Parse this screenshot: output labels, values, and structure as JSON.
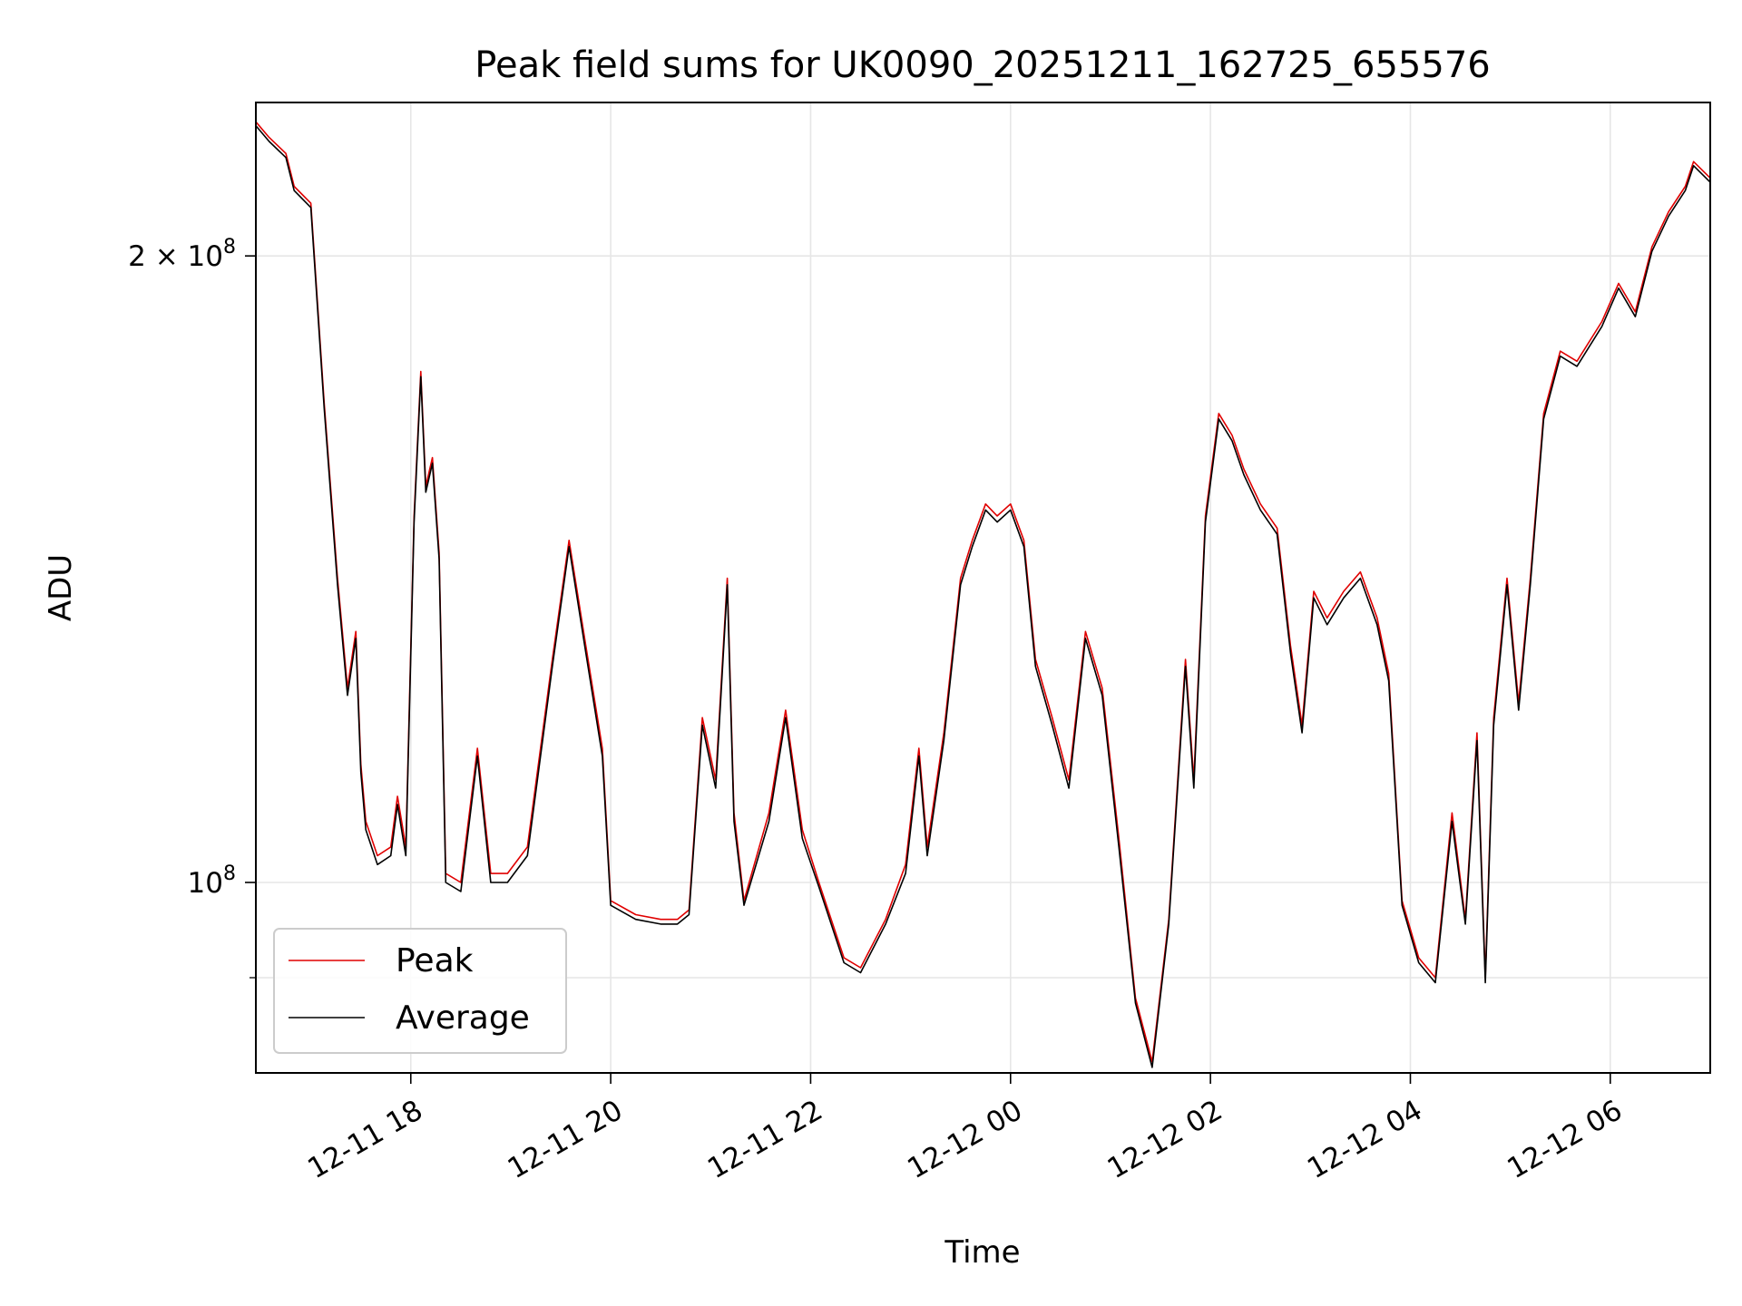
{
  "chart_data": {
    "type": "line",
    "title": "Peak field sums for UK0090_20251211_162725_655576",
    "xlabel": "Time",
    "ylabel": "ADU",
    "x_axis": {
      "type": "time",
      "range": [
        "2025-12-11T16:27",
        "2025-12-12T07:00"
      ]
    },
    "y_axis": {
      "scale": "log",
      "range": [
        81000000,
        237000000
      ]
    },
    "grid": true,
    "legend": {
      "placement": "lower-left"
    },
    "x_ticks": [
      {
        "value": "2025-12-11T18:00",
        "label": "12-11 18"
      },
      {
        "value": "2025-12-11T20:00",
        "label": "12-11 20"
      },
      {
        "value": "2025-12-11T22:00",
        "label": "12-11 22"
      },
      {
        "value": "2025-12-12T00:00",
        "label": "12-12 00"
      },
      {
        "value": "2025-12-12T02:00",
        "label": "12-12 02"
      },
      {
        "value": "2025-12-12T04:00",
        "label": "12-12 04"
      },
      {
        "value": "2025-12-12T06:00",
        "label": "12-12 06"
      }
    ],
    "y_ticks": [
      {
        "value": 200000000,
        "label_base": "2 × 10",
        "label_exp": "8"
      },
      {
        "value": 100000000,
        "label_base": "10",
        "label_exp": "8"
      }
    ],
    "y_minor_ticks": [
      90000000
    ],
    "series": [
      {
        "name": "Peak",
        "color": "#e00000",
        "points": [
          [
            "2025-12-11T16:27",
            232000000
          ],
          [
            "2025-12-11T16:35",
            228000000
          ],
          [
            "2025-12-11T16:45",
            224000000
          ],
          [
            "2025-12-11T16:50",
            216000000
          ],
          [
            "2025-12-11T17:00",
            212000000
          ],
          [
            "2025-12-11T17:08",
            170000000
          ],
          [
            "2025-12-11T17:16",
            140000000
          ],
          [
            "2025-12-11T17:22",
            124000000
          ],
          [
            "2025-12-11T17:27",
            132000000
          ],
          [
            "2025-12-11T17:30",
            114000000
          ],
          [
            "2025-12-11T17:33",
            107000000
          ],
          [
            "2025-12-11T17:40",
            103000000
          ],
          [
            "2025-12-11T17:48",
            104000000
          ],
          [
            "2025-12-11T17:52",
            110000000
          ],
          [
            "2025-12-11T17:57",
            104000000
          ],
          [
            "2025-12-11T18:02",
            150000000
          ],
          [
            "2025-12-11T18:06",
            176000000
          ],
          [
            "2025-12-11T18:09",
            155000000
          ],
          [
            "2025-12-11T18:13",
            160000000
          ],
          [
            "2025-12-11T18:17",
            144000000
          ],
          [
            "2025-12-11T18:21",
            101000000
          ],
          [
            "2025-12-11T18:30",
            100000000
          ],
          [
            "2025-12-11T18:40",
            116000000
          ],
          [
            "2025-12-11T18:48",
            101000000
          ],
          [
            "2025-12-11T18:58",
            101000000
          ],
          [
            "2025-12-11T19:10",
            104000000
          ],
          [
            "2025-12-11T19:25",
            128000000
          ],
          [
            "2025-12-11T19:35",
            146000000
          ],
          [
            "2025-12-11T19:45",
            130000000
          ],
          [
            "2025-12-11T19:55",
            116000000
          ],
          [
            "2025-12-11T20:00",
            98000000
          ],
          [
            "2025-12-11T20:15",
            96500000
          ],
          [
            "2025-12-11T20:30",
            96000000
          ],
          [
            "2025-12-11T20:40",
            96000000
          ],
          [
            "2025-12-11T20:47",
            97000000
          ],
          [
            "2025-12-11T20:55",
            120000000
          ],
          [
            "2025-12-11T21:03",
            112000000
          ],
          [
            "2025-12-11T21:10",
            140000000
          ],
          [
            "2025-12-11T21:14",
            108000000
          ],
          [
            "2025-12-11T21:20",
            98000000
          ],
          [
            "2025-12-11T21:35",
            108000000
          ],
          [
            "2025-12-11T21:45",
            121000000
          ],
          [
            "2025-12-11T21:55",
            106000000
          ],
          [
            "2025-12-11T22:05",
            100000000
          ],
          [
            "2025-12-11T22:20",
            92000000
          ],
          [
            "2025-12-11T22:30",
            91000000
          ],
          [
            "2025-12-11T22:45",
            96000000
          ],
          [
            "2025-12-11T22:57",
            102000000
          ],
          [
            "2025-12-11T23:05",
            116000000
          ],
          [
            "2025-12-11T23:10",
            104000000
          ],
          [
            "2025-12-11T23:20",
            118000000
          ],
          [
            "2025-12-11T23:30",
            140000000
          ],
          [
            "2025-12-11T23:37",
            146000000
          ],
          [
            "2025-12-11T23:45",
            152000000
          ],
          [
            "2025-12-11T23:52",
            150000000
          ],
          [
            "2025-12-12T00:00",
            152000000
          ],
          [
            "2025-12-12T00:08",
            146000000
          ],
          [
            "2025-12-12T00:15",
            128000000
          ],
          [
            "2025-12-12T00:25",
            120000000
          ],
          [
            "2025-12-12T00:35",
            112000000
          ],
          [
            "2025-12-12T00:45",
            132000000
          ],
          [
            "2025-12-12T00:55",
            124000000
          ],
          [
            "2025-12-12T01:05",
            105000000
          ],
          [
            "2025-12-12T01:15",
            88000000
          ],
          [
            "2025-12-12T01:25",
            82000000
          ],
          [
            "2025-12-12T01:35",
            96000000
          ],
          [
            "2025-12-12T01:45",
            128000000
          ],
          [
            "2025-12-12T01:50",
            112000000
          ],
          [
            "2025-12-12T01:57",
            150000000
          ],
          [
            "2025-12-12T02:05",
            168000000
          ],
          [
            "2025-12-12T02:13",
            164000000
          ],
          [
            "2025-12-12T02:20",
            158000000
          ],
          [
            "2025-12-12T02:30",
            152000000
          ],
          [
            "2025-12-12T02:40",
            148000000
          ],
          [
            "2025-12-12T02:48",
            130000000
          ],
          [
            "2025-12-12T02:55",
            119000000
          ],
          [
            "2025-12-12T03:02",
            138000000
          ],
          [
            "2025-12-12T03:10",
            134000000
          ],
          [
            "2025-12-12T03:20",
            138000000
          ],
          [
            "2025-12-12T03:30",
            141000000
          ],
          [
            "2025-12-12T03:40",
            134000000
          ],
          [
            "2025-12-12T03:47",
            126000000
          ],
          [
            "2025-12-12T03:55",
            98000000
          ],
          [
            "2025-12-12T04:05",
            92000000
          ],
          [
            "2025-12-12T04:15",
            90000000
          ],
          [
            "2025-12-12T04:25",
            108000000
          ],
          [
            "2025-12-12T04:33",
            96000000
          ],
          [
            "2025-12-12T04:40",
            118000000
          ],
          [
            "2025-12-12T04:45",
            90000000
          ],
          [
            "2025-12-12T04:50",
            120000000
          ],
          [
            "2025-12-12T04:58",
            140000000
          ],
          [
            "2025-12-12T05:05",
            122000000
          ],
          [
            "2025-12-12T05:12",
            140000000
          ],
          [
            "2025-12-12T05:20",
            168000000
          ],
          [
            "2025-12-12T05:30",
            180000000
          ],
          [
            "2025-12-12T05:40",
            178000000
          ],
          [
            "2025-12-12T05:55",
            186000000
          ],
          [
            "2025-12-12T06:05",
            194000000
          ],
          [
            "2025-12-12T06:15",
            188000000
          ],
          [
            "2025-12-12T06:25",
            202000000
          ],
          [
            "2025-12-12T06:35",
            210000000
          ],
          [
            "2025-12-12T06:45",
            216000000
          ],
          [
            "2025-12-12T06:50",
            222000000
          ],
          [
            "2025-12-12T07:00",
            218000000
          ]
        ]
      },
      {
        "name": "Average",
        "color": "#000000",
        "points": [
          [
            "2025-12-11T16:27",
            231000000
          ],
          [
            "2025-12-11T16:35",
            227000000
          ],
          [
            "2025-12-11T16:45",
            223000000
          ],
          [
            "2025-12-11T16:50",
            215000000
          ],
          [
            "2025-12-11T17:00",
            211000000
          ],
          [
            "2025-12-11T17:08",
            169000000
          ],
          [
            "2025-12-11T17:16",
            139000000
          ],
          [
            "2025-12-11T17:22",
            123000000
          ],
          [
            "2025-12-11T17:27",
            131000000
          ],
          [
            "2025-12-11T17:30",
            113000000
          ],
          [
            "2025-12-11T17:33",
            106000000
          ],
          [
            "2025-12-11T17:40",
            102000000
          ],
          [
            "2025-12-11T17:48",
            103000000
          ],
          [
            "2025-12-11T17:52",
            109000000
          ],
          [
            "2025-12-11T17:57",
            103000000
          ],
          [
            "2025-12-11T18:02",
            149000000
          ],
          [
            "2025-12-11T18:06",
            175000000
          ],
          [
            "2025-12-11T18:09",
            154000000
          ],
          [
            "2025-12-11T18:13",
            159000000
          ],
          [
            "2025-12-11T18:17",
            143000000
          ],
          [
            "2025-12-11T18:21",
            100000000
          ],
          [
            "2025-12-11T18:30",
            99000000
          ],
          [
            "2025-12-11T18:40",
            115000000
          ],
          [
            "2025-12-11T18:48",
            100000000
          ],
          [
            "2025-12-11T18:58",
            100000000
          ],
          [
            "2025-12-11T19:10",
            103000000
          ],
          [
            "2025-12-11T19:25",
            127000000
          ],
          [
            "2025-12-11T19:35",
            145000000
          ],
          [
            "2025-12-11T19:45",
            129000000
          ],
          [
            "2025-12-11T19:55",
            115000000
          ],
          [
            "2025-12-11T20:00",
            97500000
          ],
          [
            "2025-12-11T20:15",
            96000000
          ],
          [
            "2025-12-11T20:30",
            95500000
          ],
          [
            "2025-12-11T20:40",
            95500000
          ],
          [
            "2025-12-11T20:47",
            96500000
          ],
          [
            "2025-12-11T20:55",
            119000000
          ],
          [
            "2025-12-11T21:03",
            111000000
          ],
          [
            "2025-12-11T21:10",
            139000000
          ],
          [
            "2025-12-11T21:14",
            107000000
          ],
          [
            "2025-12-11T21:20",
            97500000
          ],
          [
            "2025-12-11T21:35",
            107000000
          ],
          [
            "2025-12-11T21:45",
            120000000
          ],
          [
            "2025-12-11T21:55",
            105000000
          ],
          [
            "2025-12-11T22:05",
            99500000
          ],
          [
            "2025-12-11T22:20",
            91500000
          ],
          [
            "2025-12-11T22:30",
            90500000
          ],
          [
            "2025-12-11T22:45",
            95500000
          ],
          [
            "2025-12-11T22:57",
            101000000
          ],
          [
            "2025-12-11T23:05",
            115000000
          ],
          [
            "2025-12-11T23:10",
            103000000
          ],
          [
            "2025-12-11T23:20",
            117000000
          ],
          [
            "2025-12-11T23:30",
            139000000
          ],
          [
            "2025-12-11T23:37",
            145000000
          ],
          [
            "2025-12-11T23:45",
            151000000
          ],
          [
            "2025-12-11T23:52",
            149000000
          ],
          [
            "2025-12-12T00:00",
            151000000
          ],
          [
            "2025-12-12T00:08",
            145000000
          ],
          [
            "2025-12-12T00:15",
            127000000
          ],
          [
            "2025-12-12T00:25",
            119000000
          ],
          [
            "2025-12-12T00:35",
            111000000
          ],
          [
            "2025-12-12T00:45",
            131000000
          ],
          [
            "2025-12-12T00:55",
            123000000
          ],
          [
            "2025-12-12T01:05",
            104000000
          ],
          [
            "2025-12-12T01:15",
            87500000
          ],
          [
            "2025-12-12T01:25",
            81500000
          ],
          [
            "2025-12-12T01:35",
            95500000
          ],
          [
            "2025-12-12T01:45",
            127000000
          ],
          [
            "2025-12-12T01:50",
            111000000
          ],
          [
            "2025-12-12T01:57",
            149000000
          ],
          [
            "2025-12-12T02:05",
            167000000
          ],
          [
            "2025-12-12T02:13",
            163000000
          ],
          [
            "2025-12-12T02:20",
            157000000
          ],
          [
            "2025-12-12T02:30",
            151000000
          ],
          [
            "2025-12-12T02:40",
            147000000
          ],
          [
            "2025-12-12T02:48",
            129000000
          ],
          [
            "2025-12-12T02:55",
            118000000
          ],
          [
            "2025-12-12T03:02",
            137000000
          ],
          [
            "2025-12-12T03:10",
            133000000
          ],
          [
            "2025-12-12T03:20",
            137000000
          ],
          [
            "2025-12-12T03:30",
            140000000
          ],
          [
            "2025-12-12T03:40",
            133000000
          ],
          [
            "2025-12-12T03:47",
            125000000
          ],
          [
            "2025-12-12T03:55",
            97500000
          ],
          [
            "2025-12-12T04:05",
            91500000
          ],
          [
            "2025-12-12T04:15",
            89500000
          ],
          [
            "2025-12-12T04:25",
            107000000
          ],
          [
            "2025-12-12T04:33",
            95500000
          ],
          [
            "2025-12-12T04:40",
            117000000
          ],
          [
            "2025-12-12T04:45",
            89500000
          ],
          [
            "2025-12-12T04:50",
            119000000
          ],
          [
            "2025-12-12T04:58",
            139000000
          ],
          [
            "2025-12-12T05:05",
            121000000
          ],
          [
            "2025-12-12T05:12",
            139000000
          ],
          [
            "2025-12-12T05:20",
            167000000
          ],
          [
            "2025-12-12T05:30",
            179000000
          ],
          [
            "2025-12-12T05:40",
            177000000
          ],
          [
            "2025-12-12T05:55",
            185000000
          ],
          [
            "2025-12-12T06:05",
            193000000
          ],
          [
            "2025-12-12T06:15",
            187000000
          ],
          [
            "2025-12-12T06:25",
            201000000
          ],
          [
            "2025-12-12T06:35",
            209000000
          ],
          [
            "2025-12-12T06:45",
            215000000
          ],
          [
            "2025-12-12T06:50",
            221000000
          ],
          [
            "2025-12-12T07:00",
            217000000
          ]
        ]
      }
    ]
  }
}
